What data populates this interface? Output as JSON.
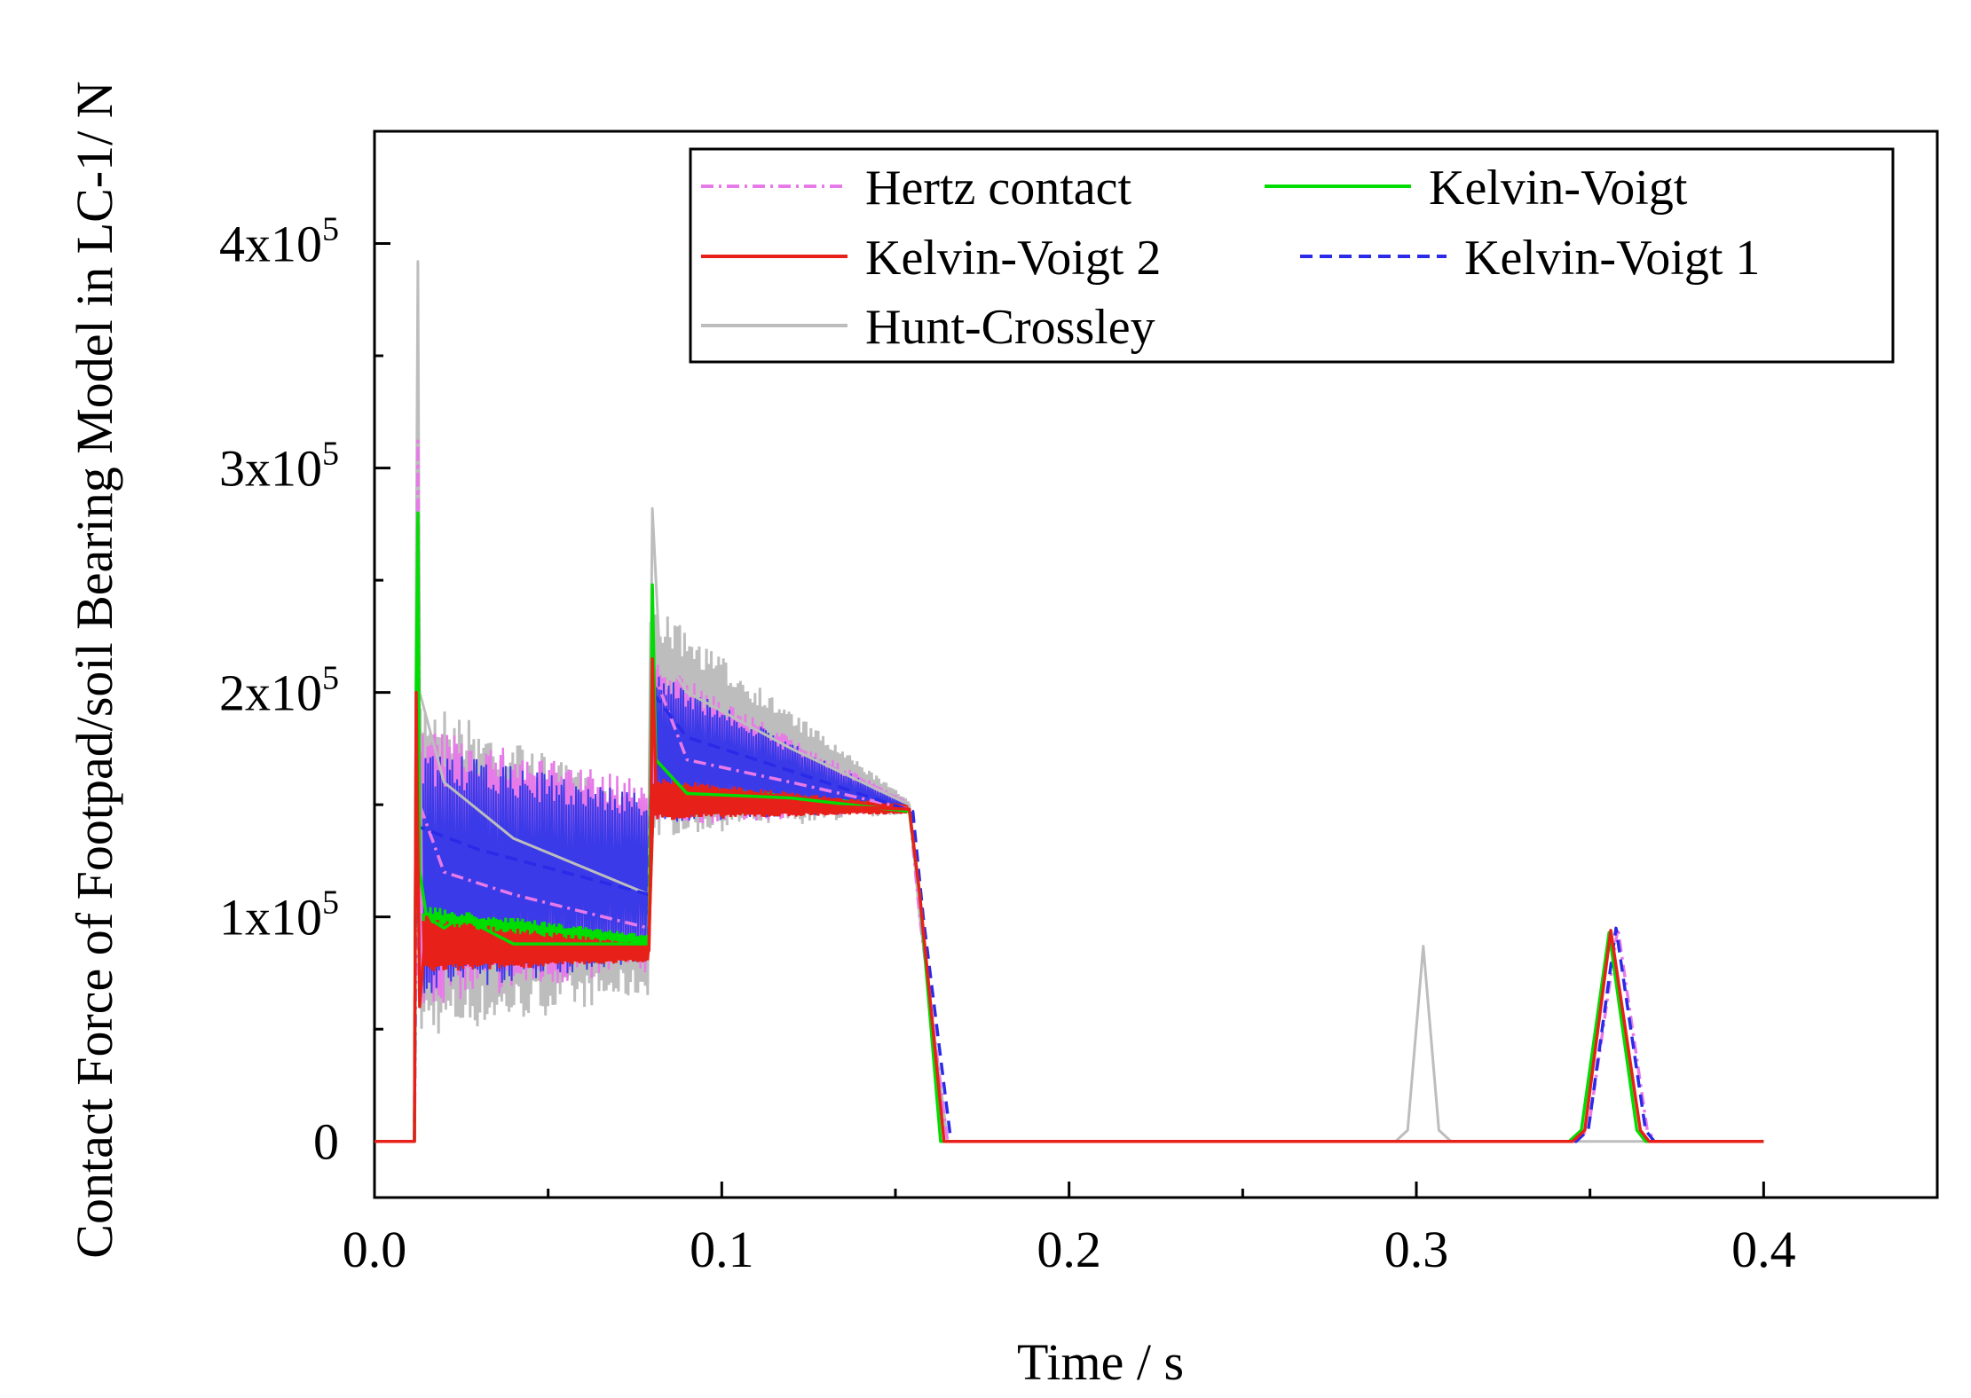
{
  "chart_data": {
    "type": "line",
    "title": "",
    "xlabel": "Time / s",
    "ylabel": "Contact Force of Footpad/soil Bearing Model in LC-1/ N",
    "xlim": [
      0.0,
      0.45
    ],
    "ylim": [
      -25000,
      450000
    ],
    "x_ticks": [
      {
        "value": 0.0,
        "label": "0.0"
      },
      {
        "value": 0.1,
        "label": "0.1"
      },
      {
        "value": 0.2,
        "label": "0.2"
      },
      {
        "value": 0.3,
        "label": "0.3"
      },
      {
        "value": 0.4,
        "label": "0.4"
      }
    ],
    "y_ticks": [
      {
        "value": 0,
        "label": "0",
        "exp": ""
      },
      {
        "value": 100000,
        "label": "1x10",
        "exp": "5"
      },
      {
        "value": 200000,
        "label": "2x10",
        "exp": "5"
      },
      {
        "value": 300000,
        "label": "3x10",
        "exp": "5"
      },
      {
        "value": 400000,
        "label": "4x10",
        "exp": "5"
      }
    ],
    "legend": {
      "placement": "top-right",
      "columns": 2
    },
    "series": [
      {
        "name": "Hertz contact",
        "color": "#e77ae8",
        "dash": "dashdot",
        "envelope": [
          [
            0.012,
            0,
            312000
          ],
          [
            0.03,
            55000,
            180000
          ],
          [
            0.079,
            70000,
            165000
          ],
          [
            0.081,
            140000,
            215000
          ],
          [
            0.153,
            145000,
            152000
          ],
          [
            0.165,
            0,
            0
          ]
        ],
        "peaks": [
          {
            "x": 0.312,
            "y": 0
          }
        ],
        "points": [
          [
            0.0,
            0
          ],
          [
            0.0115,
            0
          ],
          [
            0.012,
            90000
          ],
          [
            0.0125,
            312000
          ],
          [
            0.013,
            150000
          ],
          [
            0.02,
            120000
          ],
          [
            0.04,
            110000
          ],
          [
            0.079,
            95000
          ],
          [
            0.0795,
            140000
          ],
          [
            0.08,
            210000
          ],
          [
            0.09,
            170000
          ],
          [
            0.12,
            160000
          ],
          [
            0.154,
            148000
          ],
          [
            0.157,
            100000
          ],
          [
            0.165,
            0
          ],
          [
            0.345,
            0
          ],
          [
            0.3495,
            5000
          ],
          [
            0.358,
            95000
          ],
          [
            0.3665,
            5000
          ],
          [
            0.369,
            0
          ],
          [
            0.4,
            0
          ]
        ]
      },
      {
        "name": "Kelvin-Voigt",
        "color": "#00dd00",
        "dash": "solid",
        "points": [
          [
            0.0,
            0
          ],
          [
            0.0115,
            0
          ],
          [
            0.012,
            200000
          ],
          [
            0.0125,
            280000
          ],
          [
            0.013,
            120000
          ],
          [
            0.015,
            100000
          ],
          [
            0.02,
            95000
          ],
          [
            0.025,
            100000
          ],
          [
            0.04,
            88000
          ],
          [
            0.079,
            88000
          ],
          [
            0.0795,
            150000
          ],
          [
            0.08,
            248000
          ],
          [
            0.081,
            170000
          ],
          [
            0.09,
            155000
          ],
          [
            0.12,
            153000
          ],
          [
            0.154,
            147000
          ],
          [
            0.157,
            110000
          ],
          [
            0.163,
            0
          ],
          [
            0.344,
            0
          ],
          [
            0.3475,
            5000
          ],
          [
            0.3555,
            93000
          ],
          [
            0.3635,
            5000
          ],
          [
            0.366,
            0
          ],
          [
            0.4,
            0
          ]
        ]
      },
      {
        "name": "Kelvin-Voigt 2",
        "color": "#e8201a",
        "dash": "solid",
        "points": [
          [
            0.0,
            0
          ],
          [
            0.0115,
            0
          ],
          [
            0.012,
            200000
          ],
          [
            0.0125,
            130000
          ],
          [
            0.013,
            60000
          ],
          [
            0.015,
            100000
          ],
          [
            0.02,
            85000
          ],
          [
            0.04,
            85000
          ],
          [
            0.079,
            85000
          ],
          [
            0.0795,
            120000
          ],
          [
            0.08,
            215000
          ],
          [
            0.081,
            160000
          ],
          [
            0.09,
            152000
          ],
          [
            0.12,
            150000
          ],
          [
            0.154,
            148000
          ],
          [
            0.157,
            110000
          ],
          [
            0.164,
            0
          ],
          [
            0.345,
            0
          ],
          [
            0.3485,
            5000
          ],
          [
            0.356,
            94000
          ],
          [
            0.3645,
            5000
          ],
          [
            0.367,
            0
          ],
          [
            0.4,
            0
          ]
        ]
      },
      {
        "name": "Kelvin-Voigt  1",
        "color": "#2a2ae8",
        "dash": "dashed",
        "points": [
          [
            0.0,
            0
          ],
          [
            0.0115,
            0
          ],
          [
            0.012,
            180000
          ],
          [
            0.013,
            140000
          ],
          [
            0.03,
            130000
          ],
          [
            0.079,
            110000
          ],
          [
            0.08,
            200000
          ],
          [
            0.09,
            180000
          ],
          [
            0.12,
            165000
          ],
          [
            0.155,
            147000
          ],
          [
            0.158,
            100000
          ],
          [
            0.166,
            0
          ],
          [
            0.346,
            0
          ],
          [
            0.3495,
            5000
          ],
          [
            0.3575,
            95000
          ],
          [
            0.366,
            5000
          ],
          [
            0.3685,
            0
          ],
          [
            0.4,
            0
          ]
        ]
      },
      {
        "name": "Hunt-Crossley",
        "color": "#bdbdbd",
        "dash": "solid",
        "points": [
          [
            0.0,
            0
          ],
          [
            0.0115,
            0
          ],
          [
            0.012,
            250000
          ],
          [
            0.0125,
            392000
          ],
          [
            0.013,
            200000
          ],
          [
            0.02,
            160000
          ],
          [
            0.04,
            135000
          ],
          [
            0.079,
            110000
          ],
          [
            0.0795,
            200000
          ],
          [
            0.08,
            282000
          ],
          [
            0.082,
            220000
          ],
          [
            0.09,
            200000
          ],
          [
            0.12,
            175000
          ],
          [
            0.154,
            150000
          ],
          [
            0.157,
            100000
          ],
          [
            0.165,
            0
          ],
          [
            0.294,
            0
          ],
          [
            0.2975,
            5000
          ],
          [
            0.302,
            87000
          ],
          [
            0.3065,
            5000
          ],
          [
            0.31,
            0
          ],
          [
            0.4,
            0
          ]
        ]
      }
    ]
  }
}
